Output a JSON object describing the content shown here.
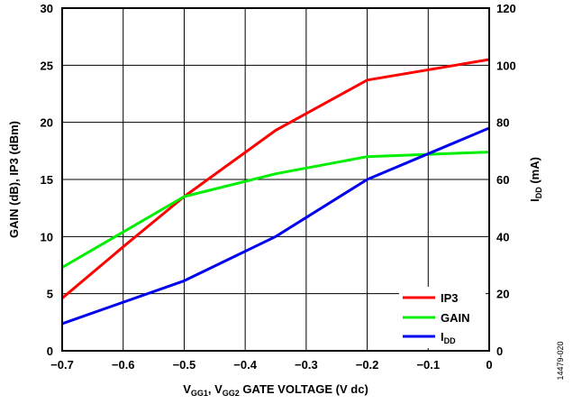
{
  "chart_data": {
    "type": "line",
    "xlabel": {
      "parts": [
        "V",
        "GG1",
        ", V",
        "GG2",
        " GATE VOLTAGE (V dc)"
      ]
    },
    "ylabel_left": "GAIN (dB), IP3 (dBm)",
    "ylabel_right": {
      "parts": [
        "I",
        "DD",
        " (mA)"
      ]
    },
    "xlim": [
      -0.7,
      0
    ],
    "ylim_left": [
      0,
      30
    ],
    "ylim_right": [
      0,
      120
    ],
    "x_ticks": [
      "−0.7",
      "−0.6",
      "−0.5",
      "−0.4",
      "−0.3",
      "−0.2",
      "−0.1",
      "0"
    ],
    "y_left_ticks": [
      "0",
      "5",
      "10",
      "15",
      "20",
      "25",
      "30"
    ],
    "y_right_ticks": [
      "0",
      "20",
      "40",
      "60",
      "80",
      "100",
      "120"
    ],
    "grid": true,
    "legend_position": "bottom-right",
    "series": [
      {
        "name": "IP3",
        "axis": "left",
        "color": "#ff0000",
        "x": [
          -0.7,
          -0.6,
          -0.5,
          -0.35,
          -0.2,
          0
        ],
        "y": [
          4.6,
          9.1,
          13.5,
          19.3,
          23.7,
          25.5
        ]
      },
      {
        "name": "GAIN",
        "axis": "left",
        "color": "#00ee00",
        "x": [
          -0.7,
          -0.6,
          -0.5,
          -0.35,
          -0.2,
          0
        ],
        "y": [
          7.3,
          10.4,
          13.5,
          15.5,
          17.0,
          17.4
        ]
      },
      {
        "name_parts": [
          "I",
          "DD"
        ],
        "axis": "right",
        "color": "#0000ee",
        "x": [
          -0.7,
          -0.5,
          -0.35,
          -0.2,
          0
        ],
        "y": [
          9.5,
          24.5,
          40,
          60,
          78
        ]
      }
    ]
  },
  "figure_id": "14479-020"
}
